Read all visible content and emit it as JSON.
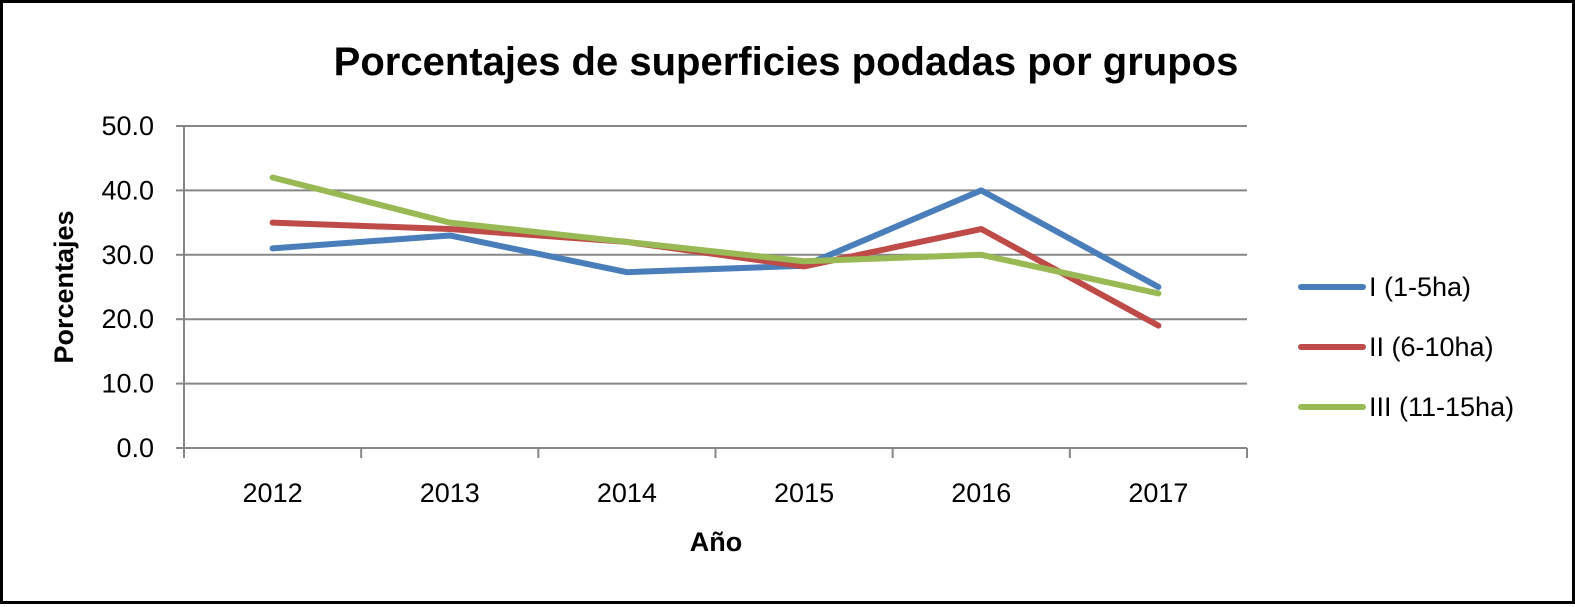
{
  "chart_data": {
    "type": "line",
    "title": "Porcentajes de superficies podadas por grupos",
    "xlabel": "Año",
    "ylabel": "Porcentajes",
    "categories": [
      "2012",
      "2013",
      "2014",
      "2015",
      "2016",
      "2017"
    ],
    "ylim": [
      0,
      50
    ],
    "yticks": [
      "0.0",
      "10.0",
      "20.0",
      "30.0",
      "40.0",
      "50.0"
    ],
    "grid": true,
    "legend_position": "right",
    "series": [
      {
        "name": "I (1-5ha)",
        "color": "#4a7ebb",
        "values": [
          31,
          33,
          27.3,
          28.3,
          40,
          25
        ]
      },
      {
        "name": "II (6-10ha)",
        "color": "#be4b48",
        "values": [
          35,
          34,
          32,
          28.2,
          34,
          19
        ]
      },
      {
        "name": "III (11-15ha)",
        "color": "#98b954",
        "values": [
          42,
          35,
          32,
          29,
          30,
          24
        ]
      }
    ]
  }
}
